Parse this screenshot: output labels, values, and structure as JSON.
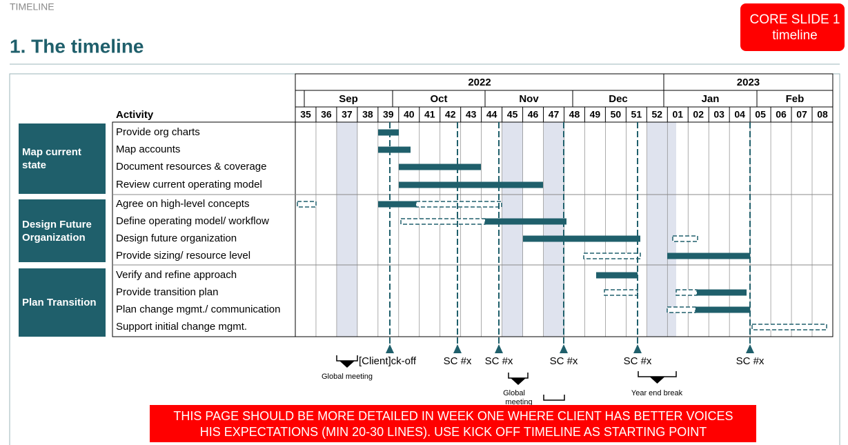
{
  "header": {
    "label": "TIMELINE"
  },
  "tag": {
    "lines": [
      "CORE SLIDE 1",
      "timeline"
    ]
  },
  "title": "1. The timeline",
  "table": {
    "years": [
      "2022",
      "2023"
    ],
    "months": [
      "Sep",
      "Oct",
      "Nov",
      "Dec",
      "Jan",
      "Feb"
    ],
    "weeks": [
      "35",
      "36",
      "37",
      "38",
      "39",
      "40",
      "41",
      "42",
      "43",
      "44",
      "45",
      "46",
      "47",
      "48",
      "49",
      "50",
      "51",
      "52",
      "01",
      "02",
      "03",
      "04",
      "05",
      "06",
      "07",
      "08"
    ],
    "activity_header": "Activity",
    "groups": [
      {
        "label": "Map current state",
        "activities": [
          "Provide org charts",
          "Map accounts",
          "Document resources & coverage",
          "Review current operating model"
        ]
      },
      {
        "label": "Design Future Organization",
        "activities": [
          "Agree on high-level concepts",
          "Define operating model/ workflow",
          "Design future organization",
          "Provide sizing/ resource level"
        ]
      },
      {
        "label": "Plan Transition",
        "activities": [
          "Verify and refine approach",
          "Provide transition plan",
          "Plan change mgmt./ communication",
          "Support initial change mgmt."
        ]
      }
    ]
  },
  "milestones": [
    "[Client]ck-off",
    "SC #x",
    "SC #x",
    "SC #x",
    "SC #x",
    "SC #x"
  ],
  "notes": [
    "Global meeting",
    "Global",
    "meeting",
    "Year end break"
  ],
  "banner": {
    "lines": [
      "THIS PAGE SHOULD BE MORE DETAILED IN WEEK ONE WHERE CLIENT HAS BETTER VOICES",
      "HIS EXPECTATIONS (MIN 20-30 LINES). USE KICK OFF TIMELINE AS STARTING POINT"
    ]
  }
}
